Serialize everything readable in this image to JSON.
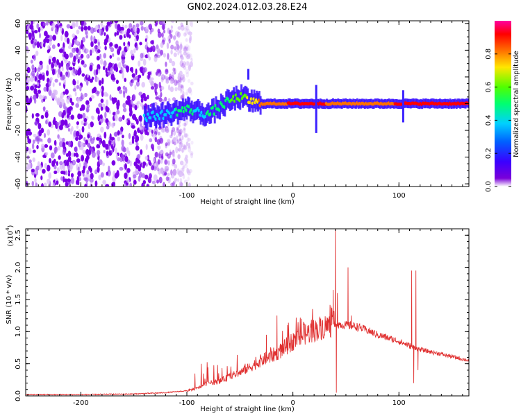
{
  "title": "GN02.2024.012.03.28.E24",
  "chart_data": [
    {
      "type": "heatmap",
      "xlabel": "Height of straight line (km)",
      "ylabel": "Frequency (Hz)",
      "xlim": [
        -252,
        166
      ],
      "ylim": [
        -62,
        62
      ],
      "xticks": [
        -200,
        -100,
        0,
        100
      ],
      "yticks": [
        -60,
        -40,
        -20,
        0,
        20,
        40,
        60
      ],
      "colorbar": {
        "label": "Normalized spectral amplitude",
        "range": [
          0.0,
          1.0
        ],
        "ticks": [
          "0.0",
          "0.2",
          "0.4",
          "0.6",
          "0.8"
        ],
        "colormap": [
          "#7a00d9",
          "#3a00ff",
          "#0060ff",
          "#00d0ff",
          "#00ff70",
          "#50ff00",
          "#ffe600",
          "#ff7000",
          "#ff0000",
          "#ff00a0"
        ]
      },
      "ridge": [
        {
          "x": -140,
          "y": -10,
          "amp": 0.35
        },
        {
          "x": -130,
          "y": -9,
          "amp": 0.42
        },
        {
          "x": -120,
          "y": -8,
          "amp": 0.4
        },
        {
          "x": -110,
          "y": -6,
          "amp": 0.45
        },
        {
          "x": -100,
          "y": -4,
          "amp": 0.48
        },
        {
          "x": -90,
          "y": -6,
          "amp": 0.42
        },
        {
          "x": -80,
          "y": -8,
          "amp": 0.45
        },
        {
          "x": -70,
          "y": -3,
          "amp": 0.5
        },
        {
          "x": -60,
          "y": 2,
          "amp": 0.55
        },
        {
          "x": -50,
          "y": 5,
          "amp": 0.6
        },
        {
          "x": -40,
          "y": 2,
          "amp": 0.7
        },
        {
          "x": -30,
          "y": 0,
          "amp": 0.8
        },
        {
          "x": -20,
          "y": 0,
          "amp": 0.85
        },
        {
          "x": 0,
          "y": 0,
          "amp": 0.9
        },
        {
          "x": 20,
          "y": 0,
          "amp": 0.9
        },
        {
          "x": 40,
          "y": 0,
          "amp": 0.88
        },
        {
          "x": 60,
          "y": 0,
          "amp": 0.88
        },
        {
          "x": 80,
          "y": 0,
          "amp": 0.85
        },
        {
          "x": 100,
          "y": 0,
          "amp": 0.9
        },
        {
          "x": 120,
          "y": 0,
          "amp": 0.95
        },
        {
          "x": 140,
          "y": 0,
          "amp": 0.95
        },
        {
          "x": 166,
          "y": 0,
          "amp": 0.95
        }
      ],
      "noise_region_x": [
        -252,
        -110
      ]
    },
    {
      "type": "line",
      "xlabel": "Height of straight line (km)",
      "ylabel": "SNR (10 * v/v)",
      "yscale_label": "(x10",
      "yscale_exp": "4",
      "xlim": [
        -252,
        166
      ],
      "ylim": [
        0,
        2.6
      ],
      "xticks": [
        -200,
        -100,
        0,
        100
      ],
      "yticks": [
        "0.0",
        "0.5",
        "1.0",
        "1.5",
        "2.0",
        "2.5"
      ],
      "color": "#e03030",
      "x": [
        -252,
        -200,
        -150,
        -120,
        -100,
        -90,
        -80,
        -70,
        -60,
        -50,
        -40,
        -30,
        -20,
        -10,
        0,
        10,
        20,
        30,
        40,
        50,
        60,
        70,
        80,
        90,
        100,
        110,
        115,
        120,
        140,
        166
      ],
      "y": [
        0.02,
        0.02,
        0.03,
        0.05,
        0.08,
        0.12,
        0.2,
        0.22,
        0.3,
        0.36,
        0.45,
        0.55,
        0.62,
        0.72,
        0.85,
        0.95,
        1.02,
        1.08,
        1.12,
        1.1,
        1.08,
        1.02,
        0.95,
        0.9,
        0.85,
        0.78,
        0.75,
        0.72,
        0.65,
        0.55
      ],
      "spikes": [
        {
          "x": 38,
          "y": 1.65
        },
        {
          "x": 40,
          "y": 2.6
        },
        {
          "x": 41,
          "y": 0.05
        },
        {
          "x": 42,
          "y": 1.6
        },
        {
          "x": 52,
          "y": 2.0
        },
        {
          "x": 55,
          "y": 1.25
        },
        {
          "x": 112,
          "y": 1.95
        },
        {
          "x": 114,
          "y": 0.2
        },
        {
          "x": 116,
          "y": 1.95
        },
        {
          "x": 118,
          "y": 0.4
        },
        {
          "x": -25,
          "y": 0.95
        },
        {
          "x": -15,
          "y": 1.25
        },
        {
          "x": -5,
          "y": 1.1
        },
        {
          "x": 8,
          "y": 1.2
        },
        {
          "x": -45,
          "y": 0.5
        }
      ]
    }
  ]
}
